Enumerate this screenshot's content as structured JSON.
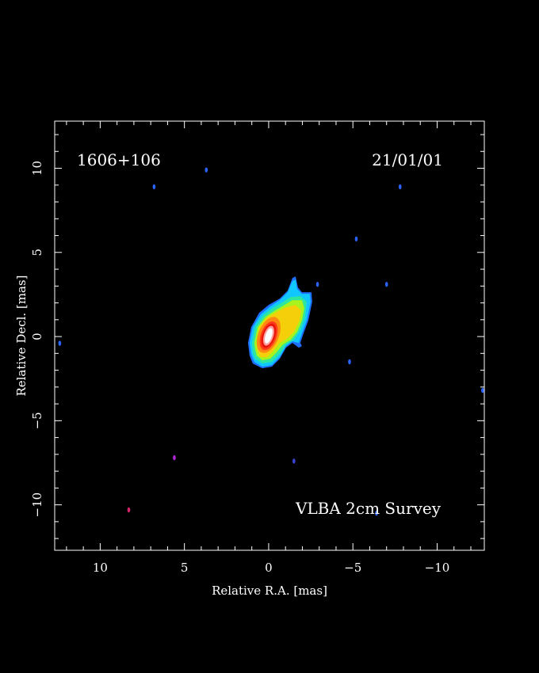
{
  "chart_data": {
    "type": "heatmap",
    "xlabel": "Relative R.A. [mas]",
    "ylabel": "Relative Decl. [mas]",
    "xlim": [
      12.7,
      -12.8
    ],
    "ylim": [
      -12.7,
      12.8
    ],
    "x_ticks": [
      10,
      5,
      0,
      -5,
      -10
    ],
    "x_tick_labels": [
      "10",
      "5",
      "0",
      "−5",
      "−10"
    ],
    "y_ticks": [
      10,
      5,
      0,
      -5,
      -10
    ],
    "y_tick_labels": [
      "10",
      "5",
      "0",
      "−5",
      "−10"
    ],
    "annotations": {
      "source": "1606+106",
      "epoch": "21/01/01",
      "survey": "VLBA 2cm Survey"
    },
    "grid": false,
    "colors": {
      "background": "#000000",
      "frame": "#ffffff",
      "contour_levels": [
        "#1f6fff",
        "#10c8ff",
        "#2ee6a0",
        "#a8f21e",
        "#f5d00a",
        "#ff8a12",
        "#ff3a1a",
        "#e8150a",
        "#ff9f9f",
        "#ffffff"
      ]
    },
    "source_structure": {
      "core_position": [
        0.0,
        0.0
      ],
      "jet_direction": "north-west",
      "jet_extent_mas": 3.3
    },
    "noise_spots": [
      {
        "x": 3.7,
        "y": 9.9,
        "color": "#2b63ff"
      },
      {
        "x": 6.8,
        "y": 8.9,
        "color": "#2b63ff"
      },
      {
        "x": -5.2,
        "y": 5.8,
        "color": "#2b63ff"
      },
      {
        "x": -7.8,
        "y": 8.9,
        "color": "#2b63ff"
      },
      {
        "x": -7.0,
        "y": 3.1,
        "color": "#2b63ff"
      },
      {
        "x": -2.9,
        "y": 3.1,
        "color": "#2b63ff"
      },
      {
        "x": -4.8,
        "y": -1.5,
        "color": "#2b63ff"
      },
      {
        "x": 12.4,
        "y": -0.4,
        "color": "#2b63ff"
      },
      {
        "x": -12.7,
        "y": -3.2,
        "color": "#2b63ff"
      },
      {
        "x": 5.6,
        "y": -7.2,
        "color": "#b026d8"
      },
      {
        "x": -1.5,
        "y": -7.4,
        "color": "#3a43d8"
      },
      {
        "x": 8.3,
        "y": -10.3,
        "color": "#d8266e"
      },
      {
        "x": -6.4,
        "y": -10.5,
        "color": "#2b63ff"
      }
    ]
  }
}
